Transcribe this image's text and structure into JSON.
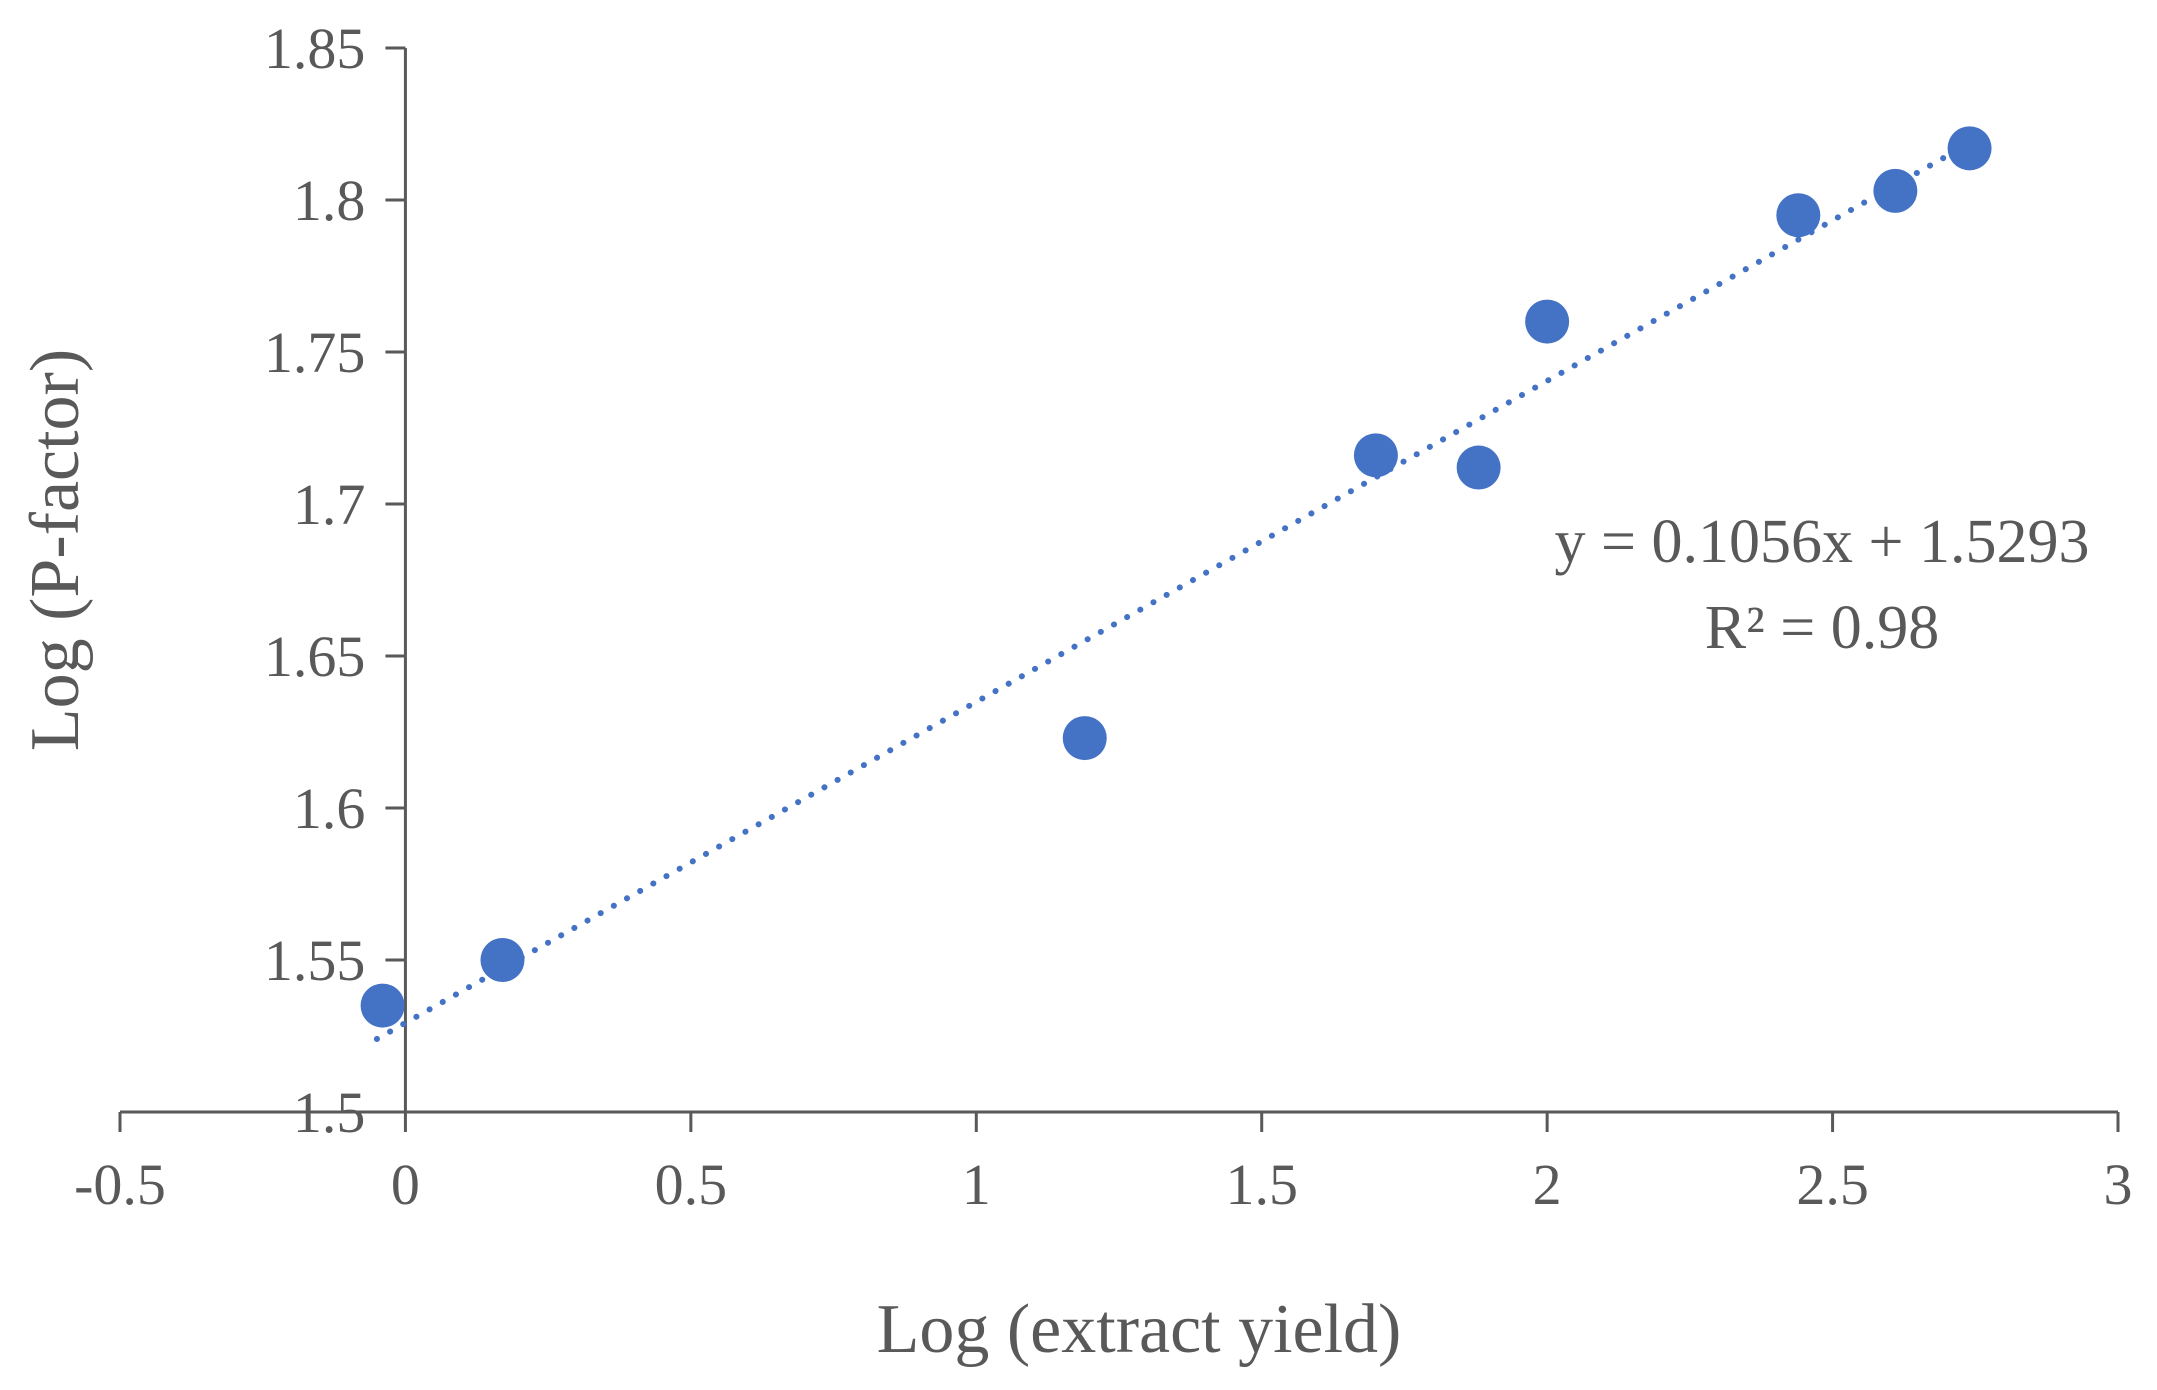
{
  "chart_data": {
    "type": "scatter",
    "xlabel": "Log (extract yield)",
    "ylabel": "Log (P-factor)",
    "xlim": [
      -0.5,
      3
    ],
    "ylim": [
      1.5,
      1.85
    ],
    "x_ticks": [
      "-0.5",
      "0",
      "0.5",
      "1",
      "1.5",
      "2",
      "2.5",
      "3"
    ],
    "y_ticks": [
      "1.5",
      "1.55",
      "1.6",
      "1.65",
      "1.7",
      "1.75",
      "1.8",
      "1.85"
    ],
    "grid": false,
    "legend": "none",
    "series": [
      {
        "color": "#4472C4",
        "points": [
          {
            "x": -0.04,
            "y": 1.535
          },
          {
            "x": 0.17,
            "y": 1.55
          },
          {
            "x": 1.19,
            "y": 1.623
          },
          {
            "x": 1.7,
            "y": 1.716
          },
          {
            "x": 1.88,
            "y": 1.712
          },
          {
            "x": 2.0,
            "y": 1.76
          },
          {
            "x": 2.44,
            "y": 1.795
          },
          {
            "x": 2.61,
            "y": 1.803
          },
          {
            "x": 2.74,
            "y": 1.817
          }
        ]
      }
    ],
    "trendline": {
      "type": "linear",
      "style": "dotted",
      "color": "#4472C4",
      "slope": 0.1056,
      "intercept": 1.5293,
      "x_range": [
        -0.05,
        2.75
      ],
      "equation": "y = 0.1056x + 1.5293",
      "r_squared": "R² = 0.98"
    }
  }
}
